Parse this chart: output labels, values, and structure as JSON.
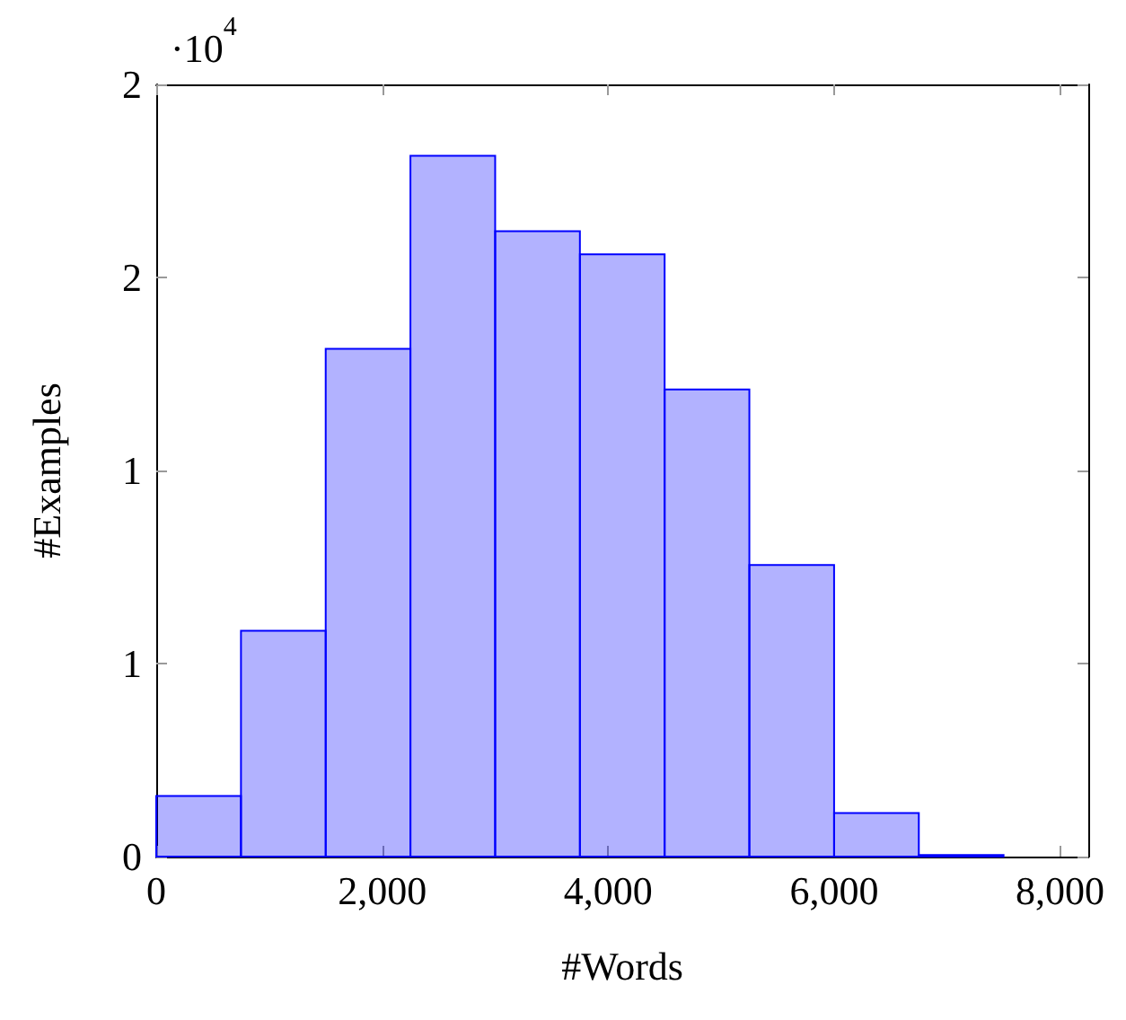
{
  "chart_data": {
    "type": "histogram",
    "xlabel": "#Words",
    "ylabel": "#Examples",
    "bins": [
      0,
      750,
      1500,
      2250,
      3000,
      3750,
      4500,
      5250,
      6000,
      6750,
      7500
    ],
    "values": [
      0.157,
      0.585,
      1.315,
      1.815,
      1.62,
      1.56,
      1.21,
      0.755,
      0.113,
      0.004
    ],
    "color": "#0000ff",
    "xlim": [
      0,
      8250
    ],
    "xticks": [
      0,
      {
        "value": 2000,
        "label": "2,000"
      },
      {
        "value": 4000,
        "label": "4,000"
      },
      {
        "value": 6000,
        "label": "6,000"
      },
      {
        "value": 8000,
        "label": "8,000"
      }
    ],
    "ylim": [
      0,
      2
    ],
    "yticks": [
      0,
      {
        "value": 0.5,
        "label": "1"
      },
      1,
      {
        "value": 1.5,
        "label": "2"
      },
      2
    ],
    "annotations": [
      "·10$^{4}$"
    ],
    "grid": false
  }
}
